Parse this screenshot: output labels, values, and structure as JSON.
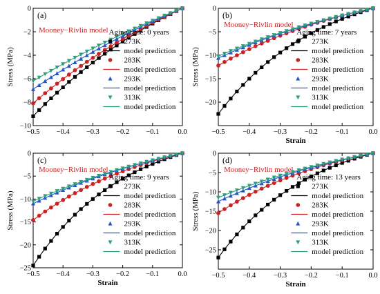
{
  "colors": {
    "k273": "#000000",
    "k283": "#cc2222",
    "k293": "#2255cc",
    "k313": "#2e9e7c",
    "model_label": "#cc2222",
    "axis": "#000000"
  },
  "chart_data": [
    {
      "type": "scatter",
      "panel_label": "(a)",
      "model_label": "Mooney−Rivlin model",
      "legend_title": "Aging time: 0 years",
      "legend_position": "right-middle",
      "xlabel": "Strain",
      "ylabel": "Stress (MPa)",
      "xlim": [
        -0.5,
        0.0
      ],
      "ylim": [
        -10,
        0
      ],
      "xticks": [
        -0.5,
        -0.4,
        -0.3,
        -0.2,
        -0.1,
        0.0
      ],
      "xtick_labels": [
        "−0.5",
        "−0.4",
        "−0.3",
        "−0.2",
        "−0.1",
        "0.0"
      ],
      "yticks": [
        -10,
        -8,
        -6,
        -4,
        -2,
        0
      ],
      "ytick_labels": [
        "−10",
        "−8",
        "−6",
        "−4",
        "−2",
        "0"
      ],
      "show_xlabel": false,
      "series": [
        {
          "name": "273K",
          "marker": "square",
          "color": "#000000",
          "model": {
            "a": -9.2,
            "k": 1.6
          }
        },
        {
          "name": "283K",
          "marker": "circle",
          "color": "#cc2222",
          "model": {
            "a": -8.1,
            "k": 1.3
          }
        },
        {
          "name": "293K",
          "marker": "triangle-up",
          "color": "#2255cc",
          "model": {
            "a": -6.9,
            "k": 1.0
          }
        },
        {
          "name": "313K",
          "marker": "triangle-down",
          "color": "#2e9e7c",
          "model": {
            "a": -6.2,
            "k": 0.8
          }
        }
      ],
      "model_legend_label": "model prediction"
    },
    {
      "type": "scatter",
      "panel_label": "(b)",
      "model_label": "Mooney−Rivlin model",
      "legend_title": "Aging time: 7 years",
      "legend_position": "right-middle",
      "xlabel": "Strain",
      "ylabel": "Stress (MPa)",
      "xlim": [
        -0.5,
        0.0
      ],
      "ylim": [
        -25,
        0
      ],
      "xticks": [
        -0.5,
        -0.4,
        -0.3,
        -0.2,
        -0.1,
        0.0
      ],
      "xtick_labels": [
        "−0.5",
        "−0.4",
        "−0.3",
        "−0.2",
        "−0.1",
        "0.0"
      ],
      "yticks": [
        -25,
        -20,
        -15,
        -10,
        -5,
        0
      ],
      "ytick_labels": [
        "",
        "−20",
        "−15",
        "−10",
        "−5",
        "0"
      ],
      "show_xlabel": true,
      "series": [
        {
          "name": "273K",
          "marker": "square",
          "color": "#000000",
          "model": {
            "a": -22.5,
            "k": 3.0
          }
        },
        {
          "name": "283K",
          "marker": "circle",
          "color": "#cc2222",
          "model": {
            "a": -12.2,
            "k": 2.0
          }
        },
        {
          "name": "293K",
          "marker": "triangle-up",
          "color": "#2255cc",
          "model": {
            "a": -10.6,
            "k": 1.5
          }
        },
        {
          "name": "313K",
          "marker": "triangle-down",
          "color": "#2e9e7c",
          "model": {
            "a": -10.2,
            "k": 1.4
          }
        }
      ],
      "model_legend_label": "model prediction"
    },
    {
      "type": "scatter",
      "panel_label": "(c)",
      "model_label": "Mooney−Rivlin model",
      "legend_title": "Aging time: 9 years",
      "legend_position": "right-middle",
      "xlabel": "Strain",
      "ylabel": "Stress (MPa)",
      "xlim": [
        -0.5,
        0.0
      ],
      "ylim": [
        -25,
        0
      ],
      "xticks": [
        -0.5,
        -0.4,
        -0.3,
        -0.2,
        -0.1,
        0.0
      ],
      "xtick_labels": [
        "−0.5",
        "−0.4",
        "−0.3",
        "−0.2",
        "−0.1",
        "0.0"
      ],
      "yticks": [
        -25,
        -20,
        -15,
        -10,
        -5,
        0
      ],
      "ytick_labels": [
        "−25",
        "−20",
        "−15",
        "−10",
        "−5",
        "0"
      ],
      "show_xlabel": true,
      "series": [
        {
          "name": "273K",
          "marker": "square",
          "color": "#000000",
          "model": {
            "a": -24.5,
            "k": 3.2
          }
        },
        {
          "name": "283K",
          "marker": "circle",
          "color": "#cc2222",
          "model": {
            "a": -14.6,
            "k": 2.3
          }
        },
        {
          "name": "293K",
          "marker": "triangle-up",
          "color": "#2255cc",
          "model": {
            "a": -11.0,
            "k": 1.6
          }
        },
        {
          "name": "313K",
          "marker": "triangle-down",
          "color": "#2e9e7c",
          "model": {
            "a": -10.5,
            "k": 1.5
          }
        }
      ],
      "model_legend_label": "model prediction"
    },
    {
      "type": "scatter",
      "panel_label": "(d)",
      "model_label": "Mooney−Rivlin model",
      "legend_title": "Aging time: 13 years",
      "legend_position": "right-middle",
      "xlabel": "Strain",
      "ylabel": "Stress (MPa)",
      "xlim": [
        -0.5,
        0.0
      ],
      "ylim": [
        -30,
        0
      ],
      "xticks": [
        -0.5,
        -0.4,
        -0.3,
        -0.2,
        -0.1,
        0.0
      ],
      "xtick_labels": [
        "−0.5",
        "−0.4",
        "−0.3",
        "−0.2",
        "−0.1",
        "0.0"
      ],
      "yticks": [
        -30,
        -25,
        -20,
        -15,
        -10,
        -5,
        0
      ],
      "ytick_labels": [
        "",
        "−25",
        "−20",
        "−15",
        "−10",
        "−5",
        "0"
      ],
      "show_xlabel": true,
      "series": [
        {
          "name": "273K",
          "marker": "square",
          "color": "#000000",
          "model": {
            "a": -27.0,
            "k": 3.3
          }
        },
        {
          "name": "283K",
          "marker": "circle",
          "color": "#cc2222",
          "model": {
            "a": -15.5,
            "k": 2.4
          }
        },
        {
          "name": "293K",
          "marker": "triangle-up",
          "color": "#2255cc",
          "model": {
            "a": -12.5,
            "k": 1.8
          }
        },
        {
          "name": "313K",
          "marker": "triangle-down",
          "color": "#2e9e7c",
          "model": {
            "a": -11.5,
            "k": 1.6
          }
        }
      ],
      "model_legend_label": "model prediction"
    }
  ]
}
